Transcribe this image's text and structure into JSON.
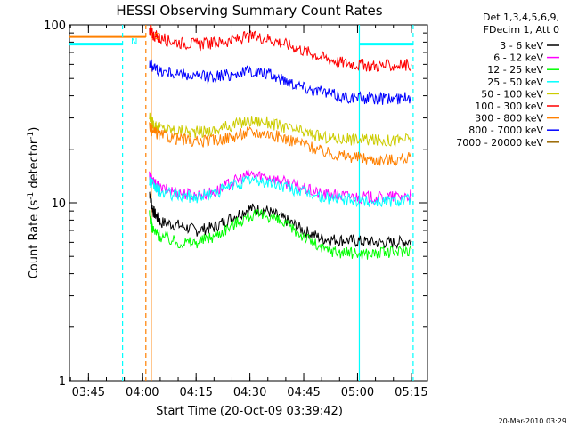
{
  "chart_data": {
    "type": "line",
    "title": "HESSI Observing Summary Count Rates",
    "xlabel": "Start Time (20-Oct-09 03:39:42)",
    "ylabel_main": "Count Rate (s",
    "ylabel_sup1": "-1",
    "ylabel_mid": " detector",
    "ylabel_sup2": "-1",
    "ylabel_end": ")",
    "yscale": "log",
    "ylim": [
      1,
      100
    ],
    "yticks": [
      {
        "value": 1,
        "label": "1"
      },
      {
        "value": 10,
        "label": "10"
      },
      {
        "value": 100,
        "label": "100"
      }
    ],
    "xlim": [
      "03:39:42",
      "05:19:30"
    ],
    "xticks": [
      "03:45",
      "04:00",
      "04:15",
      "04:30",
      "04:45",
      "05:00",
      "05:15"
    ],
    "grid": false,
    "legend_header": [
      "Det 1,3,4,5,6,9,",
      "FDecim 1, Att 0"
    ],
    "legend_position": "outside-right",
    "series": [
      {
        "name": "3 - 6 keV",
        "color": "#000000",
        "x": [
          "04:02",
          "04:03",
          "04:05",
          "04:10",
          "04:15",
          "04:20",
          "04:25",
          "04:30",
          "04:35",
          "04:40",
          "04:45",
          "04:50",
          "04:55",
          "05:00",
          "05:05",
          "05:10",
          "05:15"
        ],
        "y": [
          11.5,
          9.0,
          7.8,
          7.5,
          7.0,
          7.3,
          8.3,
          9.3,
          9.0,
          8.0,
          7.0,
          6.3,
          6.2,
          6.1,
          6.0,
          6.0,
          6.1
        ]
      },
      {
        "name": "6 - 12 keV",
        "color": "#ff00ff",
        "x": [
          "04:02",
          "04:03",
          "04:05",
          "04:10",
          "04:15",
          "04:20",
          "04:25",
          "04:30",
          "04:35",
          "04:40",
          "04:45",
          "04:50",
          "04:55",
          "05:00",
          "05:05",
          "05:10",
          "05:15"
        ],
        "y": [
          14.5,
          13.0,
          12.0,
          11.5,
          11.0,
          11.5,
          13.0,
          14.5,
          14.0,
          13.0,
          12.0,
          11.2,
          11.0,
          10.8,
          10.7,
          10.8,
          11.0
        ]
      },
      {
        "name": "12 - 25 keV",
        "color": "#00ff00",
        "x": [
          "04:02",
          "04:03",
          "04:05",
          "04:10",
          "04:15",
          "04:20",
          "04:25",
          "04:30",
          "04:35",
          "04:40",
          "04:45",
          "04:50",
          "04:55",
          "05:00",
          "05:05",
          "05:10",
          "05:15"
        ],
        "y": [
          8.5,
          7.0,
          6.5,
          6.0,
          6.0,
          6.5,
          7.5,
          8.5,
          8.5,
          7.5,
          6.5,
          5.5,
          5.3,
          5.2,
          5.2,
          5.3,
          5.5
        ]
      },
      {
        "name": "25 - 50 keV",
        "color": "#00ffff",
        "x": [
          "04:02",
          "04:03",
          "04:05",
          "04:10",
          "04:15",
          "04:20",
          "04:25",
          "04:30",
          "04:35",
          "04:40",
          "04:45",
          "04:50",
          "04:55",
          "05:00",
          "05:05",
          "05:10",
          "05:15"
        ],
        "y": [
          13.5,
          12.5,
          11.5,
          11.0,
          10.8,
          11.3,
          12.5,
          13.5,
          13.0,
          12.3,
          11.5,
          10.8,
          10.5,
          10.3,
          10.2,
          10.3,
          10.5
        ]
      },
      {
        "name": "50 - 100 keV",
        "color": "#cccc00",
        "x": [
          "04:02",
          "04:03",
          "04:05",
          "04:10",
          "04:15",
          "04:20",
          "04:25",
          "04:30",
          "04:35",
          "04:40",
          "04:45",
          "04:50",
          "04:55",
          "05:00",
          "05:05",
          "05:10",
          "05:15"
        ],
        "y": [
          30.0,
          28.0,
          26.5,
          25.5,
          25.0,
          25.5,
          27.5,
          29.0,
          28.5,
          26.5,
          25.0,
          23.5,
          23.0,
          22.8,
          22.5,
          22.5,
          23.0
        ]
      },
      {
        "name": "100 - 300 keV",
        "color": "#ff0000",
        "x": [
          "04:02",
          "04:03",
          "04:05",
          "04:10",
          "04:15",
          "04:20",
          "04:25",
          "04:30",
          "04:35",
          "04:40",
          "04:45",
          "04:50",
          "04:55",
          "05:00",
          "05:05",
          "05:10",
          "05:15"
        ],
        "y": [
          95.0,
          88.0,
          84.0,
          80.0,
          78.0,
          79.0,
          82.0,
          86.0,
          84.0,
          78.0,
          72.0,
          66.0,
          62.0,
          60.0,
          59.0,
          59.0,
          60.0
        ]
      },
      {
        "name": "300 - 800 keV",
        "color": "#ff8000",
        "x": [
          "04:02",
          "04:03",
          "04:05",
          "04:10",
          "04:15",
          "04:20",
          "04:25",
          "04:30",
          "04:35",
          "04:40",
          "04:45",
          "04:50",
          "04:55",
          "05:00",
          "05:05",
          "05:10",
          "05:15"
        ],
        "y": [
          27.0,
          25.0,
          24.0,
          23.0,
          22.0,
          22.5,
          23.5,
          25.0,
          24.5,
          23.0,
          21.5,
          19.5,
          18.5,
          18.0,
          17.5,
          17.5,
          18.0
        ]
      },
      {
        "name": "800 - 7000 keV",
        "color": "#0000ff",
        "x": [
          "04:02",
          "04:03",
          "04:05",
          "04:10",
          "04:15",
          "04:20",
          "04:25",
          "04:30",
          "04:35",
          "04:40",
          "04:45",
          "04:50",
          "04:55",
          "05:00",
          "05:05",
          "05:10",
          "05:15"
        ],
        "y": [
          62.0,
          58.0,
          55.0,
          53.0,
          51.0,
          51.5,
          53.0,
          55.0,
          53.0,
          49.0,
          45.0,
          42.0,
          40.0,
          39.0,
          38.5,
          38.5,
          39.0
        ]
      },
      {
        "name": "7000 - 20000 keV",
        "color": "#996600",
        "x": [],
        "y": []
      }
    ],
    "annotations": [
      {
        "label": "N",
        "color": "#00ffff"
      },
      {
        "label": "S",
        "color": "#ff8000"
      }
    ],
    "flags": [
      {
        "name": "night",
        "color": "#00ffff",
        "x_start": "03:39:42",
        "x_end": "03:54:30",
        "y": 78
      },
      {
        "name": "saa",
        "color": "#ff8000",
        "x_start": "03:39:42",
        "x_end": "04:01:00",
        "y": 86
      },
      {
        "name": "night",
        "color": "#00ffff",
        "x_start": "05:00:30",
        "x_end": "05:15:30",
        "y": 78
      }
    ],
    "vlines": [
      {
        "x": "03:54:30",
        "color": "#00ffff",
        "style": "dashed"
      },
      {
        "x": "04:01:00",
        "color": "#ff8000",
        "style": "dashed"
      },
      {
        "x": "04:02:30",
        "color": "#ff8000",
        "style": "solid"
      },
      {
        "x": "05:00:30",
        "color": "#00ffff",
        "style": "solid"
      },
      {
        "x": "05:15:30",
        "color": "#00ffff",
        "style": "dashed"
      }
    ]
  },
  "footer": {
    "timestamp": "20-Mar-2010 03:29"
  }
}
